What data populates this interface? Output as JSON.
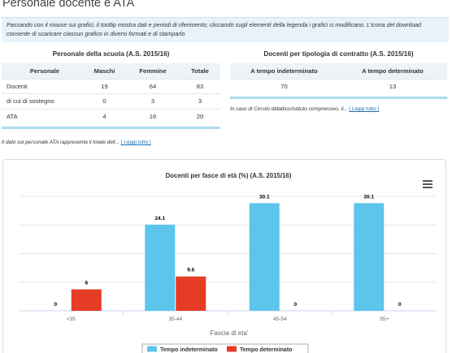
{
  "page": {
    "title": "Personale docente e ATA",
    "info": "Passando con il mouse sui grafici, il tooltip mostra dati e periodi di riferimento; cliccando sugli elementi della legenda i grafici si modificano. L'icona del download consente di scaricare ciascun grafico in diversi formati e di stamparlo"
  },
  "staff_table": {
    "title": "Personale della scuola (A.S. 2015/16)",
    "headers": [
      "Personale",
      "Maschi",
      "Femmine",
      "Totale"
    ],
    "rows": [
      [
        "Docenti",
        "19",
        "64",
        "83"
      ],
      [
        "di cui di sostegno",
        "0",
        "3",
        "3"
      ],
      [
        "ATA",
        "4",
        "16",
        "20"
      ]
    ],
    "note": "Il dato sul personale ATA rappresenta il totale dell...",
    "note_link": "[ Leggi tutto ]"
  },
  "contract_table": {
    "title": "Docenti per tipologia di contratto (A.S. 2015/16)",
    "headers": [
      "A tempo indeterminato",
      "A tempo determinato"
    ],
    "rows": [
      [
        "70",
        "13"
      ]
    ],
    "note": "In caso di Circolo didattico/istituto comprensivo, il...",
    "note_link": "[ Leggi tutto ]"
  },
  "chart_data": {
    "type": "bar",
    "title": "Docenti per fasce di età (%) (A.S. 2015/16)",
    "xlabel": "Fascia di eta'",
    "categories": [
      "<35",
      "35-44",
      "45-54",
      "55+"
    ],
    "series": [
      {
        "name": "Tempo indeterminato",
        "color": "#5bc5ec",
        "values": [
          0,
          24.1,
          30.1,
          30.1
        ]
      },
      {
        "name": "Tempo determinato",
        "color": "#e53c25",
        "values": [
          6,
          9.6,
          0,
          0
        ]
      }
    ],
    "ylim": [
      0,
      32
    ],
    "grid": true,
    "legend_position": "bottom-center"
  },
  "icons": {
    "chart_menu": "hamburger-menu-icon"
  }
}
